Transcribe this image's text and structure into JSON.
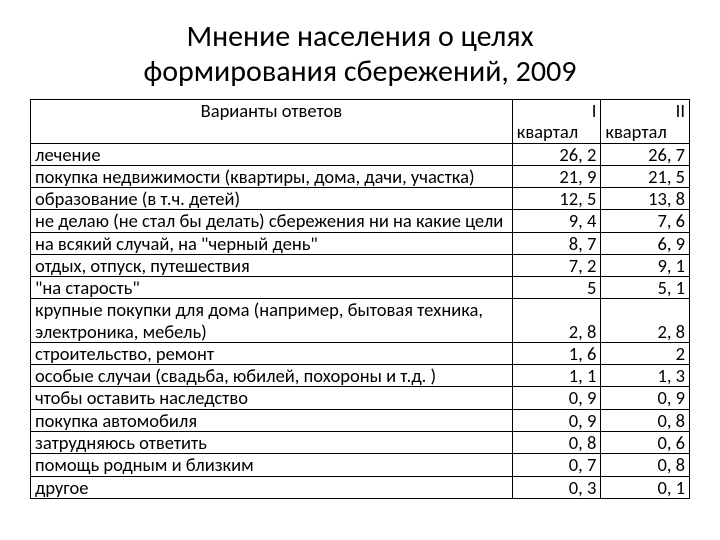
{
  "title_line1": "Мнение населения о целях",
  "title_line2": "формирования сбережений, 2009",
  "table": {
    "header": {
      "label": "Варианты ответов",
      "col1_top": "I",
      "col1_bot": "квартал",
      "col2_top": "II",
      "col2_bot": "квартал"
    },
    "rows": [
      {
        "label": "лечение",
        "q1": "26, 2",
        "q2": "26, 7"
      },
      {
        "label": "покупка недвижимости (квартиры, дома, дачи, участка)",
        "q1": "21, 9",
        "q2": "21, 5"
      },
      {
        "label": "образование (в т.ч. детей)",
        "q1": "12, 5",
        "q2": "13, 8"
      },
      {
        "label": "не делаю (не стал бы делать) сбережения ни на какие цели",
        "q1": "9, 4",
        "q2": "7, 6"
      },
      {
        "label": "на всякий случай, на \"черный день\"",
        "q1": "8, 7",
        "q2": "6, 9"
      },
      {
        "label": "отдых, отпуск, путешествия",
        "q1": "7, 2",
        "q2": "9, 1"
      },
      {
        "label": "\"на старость\"",
        "q1": "5",
        "q2": "5, 1"
      },
      {
        "label": "крупные покупки для дома (например, бытовая техника, электроника, мебель)",
        "q1": "2, 8",
        "q2": "2, 8"
      },
      {
        "label": "строительство, ремонт",
        "q1": "1, 6",
        "q2": "2"
      },
      {
        "label": "особые случаи (свадьба, юбилей, похороны и т.д. )",
        "q1": "1, 1",
        "q2": "1, 3"
      },
      {
        "label": "чтобы оставить наследство",
        "q1": "0, 9",
        "q2": "0, 9"
      },
      {
        "label": "покупка автомобиля",
        "q1": "0, 9",
        "q2": "0, 8"
      },
      {
        "label": "затрудняюсь ответить",
        "q1": "0, 8",
        "q2": "0, 6"
      },
      {
        "label": "помощь родным и близким",
        "q1": "0, 7",
        "q2": "0, 8"
      },
      {
        "label": "другое",
        "q1": "0, 3",
        "q2": "0, 1"
      }
    ]
  },
  "styles": {
    "title_fontsize": 30,
    "table_fontsize": 18.5,
    "border_color": "#000000",
    "background_color": "#ffffff",
    "text_color": "#000000",
    "col_widths": {
      "label": 480,
      "num": 80
    }
  }
}
